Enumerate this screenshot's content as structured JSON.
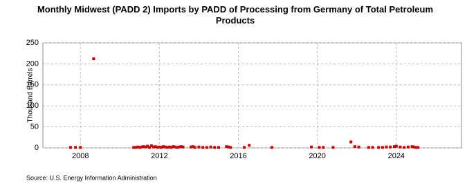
{
  "chart_data": {
    "type": "scatter",
    "title": "Monthly Midwest (PADD 2) Imports by PADD of Processing from Germany of Total Petroleum Products",
    "y_label": "Thousand Barrels",
    "source": "Source: U.S. Energy Information Administration",
    "color": "#cc0000",
    "grid": true,
    "xlim": [
      2006.1,
      2027.3
    ],
    "xticks": [
      2008,
      2012,
      2016,
      2020,
      2024
    ],
    "ylim": [
      0,
      250
    ],
    "yticks": [
      0,
      50,
      100,
      150,
      200,
      250
    ],
    "x": [
      2007.5,
      2007.75,
      2008.0,
      2008.67,
      2010.7,
      2010.8,
      2010.9,
      2011.0,
      2011.1,
      2011.2,
      2011.3,
      2011.4,
      2011.5,
      2011.6,
      2011.7,
      2011.8,
      2011.9,
      2012.0,
      2012.1,
      2012.2,
      2012.3,
      2012.4,
      2012.5,
      2012.6,
      2012.7,
      2012.8,
      2012.9,
      2013.0,
      2013.1,
      2013.2,
      2013.6,
      2013.7,
      2013.8,
      2014.0,
      2014.2,
      2014.4,
      2014.6,
      2014.8,
      2015.0,
      2015.4,
      2015.5,
      2015.6,
      2016.3,
      2016.55,
      2017.7,
      2019.7,
      2020.1,
      2020.3,
      2020.8,
      2021.7,
      2021.9,
      2022.1,
      2022.6,
      2022.8,
      2023.1,
      2023.3,
      2023.5,
      2023.7,
      2023.9,
      2024.0,
      2024.2,
      2024.4,
      2024.6,
      2024.8,
      2024.9,
      2025.0,
      2025.1
    ],
    "values": [
      1,
      1,
      1,
      212,
      1,
      1,
      2,
      1,
      2,
      3,
      2,
      4,
      1,
      5,
      2,
      3,
      1,
      2,
      1,
      3,
      2,
      1,
      2,
      1,
      3,
      2,
      1,
      2,
      3,
      2,
      2,
      3,
      1,
      2,
      1,
      1,
      2,
      1,
      1,
      3,
      2,
      1,
      1,
      6,
      1,
      2,
      1,
      1,
      1,
      14,
      3,
      2,
      1,
      1,
      1,
      1,
      2,
      2,
      3,
      4,
      2,
      1,
      2,
      3,
      2,
      1,
      1
    ]
  }
}
